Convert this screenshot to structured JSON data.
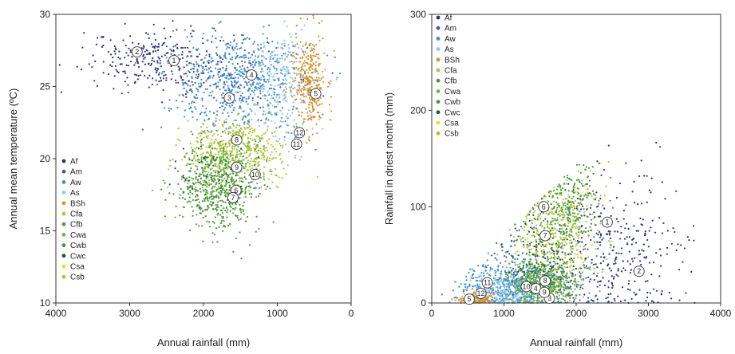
{
  "colors": {
    "Af": "#2b2f86",
    "Am": "#3c5aa8",
    "Aw": "#3f8fd2",
    "As": "#8ec7ea",
    "BSh": "#d9912b",
    "Cfa": "#a9c93a",
    "Cfb": "#4c9a34",
    "Cwa": "#6fb44a",
    "Cwb": "#4a8f3a",
    "Cwc": "#1f5a2a",
    "Csa": "#e8e020",
    "Csb": "#b4c21c"
  },
  "chart_data": [
    {
      "type": "scatter",
      "xlabel": "Annual rainfall (mm)",
      "ylabel": "Annual mean temperature (ºC)",
      "xlim": [
        4000,
        0
      ],
      "ylim": [
        10,
        30
      ],
      "x_ticks": [
        "4000",
        "3000",
        "2000",
        "1000",
        "0"
      ],
      "y_ticks": [
        "10",
        "15",
        "20",
        "25",
        "30"
      ],
      "legend_position": "bottom-left",
      "legend": [
        "Af",
        "Am",
        "Aw",
        "As",
        "BSh",
        "Cfa",
        "Cfb",
        "Cwa",
        "Cwb",
        "Cwc",
        "Csa",
        "Csb"
      ],
      "clusters": [
        {
          "cls": "Af",
          "cx": 2700,
          "cy": 26.8,
          "sx": 450,
          "sy": 1.1,
          "n": 240
        },
        {
          "cls": "Am",
          "cx": 1700,
          "cy": 25.6,
          "sx": 500,
          "sy": 1.4,
          "n": 200
        },
        {
          "cls": "Aw",
          "cx": 1500,
          "cy": 25.2,
          "sx": 450,
          "sy": 1.8,
          "n": 550
        },
        {
          "cls": "As",
          "cx": 950,
          "cy": 25.2,
          "sx": 200,
          "sy": 1.8,
          "n": 220
        },
        {
          "cls": "BSh",
          "cx": 560,
          "cy": 25.3,
          "sx": 110,
          "sy": 1.7,
          "n": 300
        },
        {
          "cls": "Cfa",
          "cx": 1550,
          "cy": 20.4,
          "sx": 330,
          "sy": 1.1,
          "n": 350
        },
        {
          "cls": "Cfb",
          "cx": 1750,
          "cy": 17.6,
          "sx": 250,
          "sy": 1.5,
          "n": 250
        },
        {
          "cls": "Cwa",
          "cx": 1700,
          "cy": 19.0,
          "sx": 300,
          "sy": 1.2,
          "n": 200
        },
        {
          "cls": "Cwb",
          "cx": 1850,
          "cy": 18.2,
          "sx": 280,
          "sy": 1.3,
          "n": 200
        },
        {
          "cls": "Cwc",
          "cx": 1850,
          "cy": 19.4,
          "sx": 250,
          "sy": 1.0,
          "n": 60
        },
        {
          "cls": "Csb",
          "cx": 1600,
          "cy": 21.4,
          "sx": 300,
          "sy": 0.8,
          "n": 120
        }
      ],
      "markers": [
        {
          "label": "1",
          "x": 2400,
          "y": 26.8
        },
        {
          "label": "2",
          "x": 2900,
          "y": 27.4
        },
        {
          "label": "3",
          "x": 1650,
          "y": 24.2
        },
        {
          "label": "4",
          "x": 1350,
          "y": 25.8
        },
        {
          "label": "5",
          "x": 480,
          "y": 24.5
        },
        {
          "label": "6",
          "x": 1560,
          "y": 17.8
        },
        {
          "label": "7",
          "x": 1600,
          "y": 17.3
        },
        {
          "label": "8",
          "x": 1550,
          "y": 21.3
        },
        {
          "label": "9",
          "x": 1550,
          "y": 19.4
        },
        {
          "label": "10",
          "x": 1300,
          "y": 18.9
        },
        {
          "label": "11",
          "x": 740,
          "y": 21.0
        },
        {
          "label": "12",
          "x": 700,
          "y": 21.8
        }
      ]
    },
    {
      "type": "scatter",
      "xlabel": "Annual rainfall (mm)",
      "ylabel": "Rainfall in driest month (mm)",
      "xlim": [
        0,
        4000
      ],
      "ylim": [
        0,
        300
      ],
      "x_ticks": [
        "0",
        "1000",
        "2000",
        "3000",
        "4000"
      ],
      "y_ticks": [
        "0",
        "100",
        "200",
        "300"
      ],
      "legend_position": "top-left",
      "legend": [
        "Af",
        "Am",
        "Aw",
        "As",
        "BSh",
        "Cfa",
        "Cfb",
        "Cwa",
        "Cwb",
        "Cwc",
        "Csa",
        "Csb"
      ],
      "clusters": [
        {
          "cls": "Af",
          "cx": 2600,
          "cy": 55,
          "sx": 450,
          "sy": 40,
          "n": 320
        },
        {
          "cls": "Am",
          "cx": 1500,
          "cy": 40,
          "sx": 400,
          "sy": 30,
          "n": 200
        },
        {
          "cls": "Aw",
          "cx": 1200,
          "cy": 18,
          "sx": 350,
          "sy": 14,
          "n": 550
        },
        {
          "cls": "As",
          "cx": 1000,
          "cy": 12,
          "sx": 250,
          "sy": 9,
          "n": 200
        },
        {
          "cls": "BSh",
          "cx": 600,
          "cy": 4,
          "sx": 110,
          "sy": 3,
          "n": 160
        },
        {
          "cls": "Cfa",
          "cx": 1750,
          "cy": 85,
          "sx": 280,
          "sy": 30,
          "n": 350
        },
        {
          "cls": "Cfb",
          "cx": 1850,
          "cy": 100,
          "sx": 250,
          "sy": 30,
          "n": 280
        },
        {
          "cls": "Cwa",
          "cx": 1500,
          "cy": 18,
          "sx": 250,
          "sy": 10,
          "n": 220
        },
        {
          "cls": "Cwb",
          "cx": 1600,
          "cy": 22,
          "sx": 220,
          "sy": 10,
          "n": 200
        },
        {
          "cls": "Cwc",
          "cx": 1450,
          "cy": 50,
          "sx": 200,
          "sy": 20,
          "n": 80
        },
        {
          "cls": "Csb",
          "cx": 1700,
          "cy": 50,
          "sx": 250,
          "sy": 25,
          "n": 100
        }
      ],
      "markers": [
        {
          "label": "1",
          "x": 2430,
          "y": 84
        },
        {
          "label": "2",
          "x": 2870,
          "y": 33
        },
        {
          "label": "3",
          "x": 1630,
          "y": 5
        },
        {
          "label": "4",
          "x": 1440,
          "y": 15
        },
        {
          "label": "5",
          "x": 520,
          "y": 4
        },
        {
          "label": "6",
          "x": 1550,
          "y": 100
        },
        {
          "label": "7",
          "x": 1570,
          "y": 70
        },
        {
          "label": "8",
          "x": 1570,
          "y": 23
        },
        {
          "label": "9",
          "x": 1560,
          "y": 11
        },
        {
          "label": "10",
          "x": 1310,
          "y": 17
        },
        {
          "label": "11",
          "x": 770,
          "y": 21
        },
        {
          "label": "12",
          "x": 680,
          "y": 10
        }
      ]
    }
  ]
}
